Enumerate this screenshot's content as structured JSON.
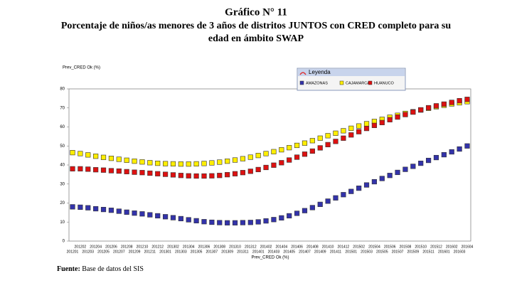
{
  "chart_data": {
    "type": "scatter",
    "title": "Gráfico N° 11",
    "subtitle": [
      "Porcentaje de niños/as menores de 3 años de distritos JUNTOS con CRED completo para su",
      "edad en ámbito SWAP"
    ],
    "y_label": "Prev_CRED Ok (%)",
    "x_label": "Prev_CRED Ok (%)",
    "legend_title": "Leyenda",
    "categories": [
      "201201",
      "201202",
      "201203",
      "201204",
      "201205",
      "201206",
      "201207",
      "201208",
      "201209",
      "201210",
      "201211",
      "201212",
      "201301",
      "201302",
      "201303",
      "201304",
      "201305",
      "201306",
      "201307",
      "201308",
      "201309",
      "201310",
      "201311",
      "201312",
      "201401",
      "201402",
      "201403",
      "201404",
      "201405",
      "201406",
      "201407",
      "201408",
      "201409",
      "201410",
      "201411",
      "201412",
      "201501",
      "201502",
      "201503",
      "201504",
      "201505",
      "201506",
      "201507",
      "201508",
      "201509",
      "201510",
      "201511",
      "201512",
      "201601",
      "201602",
      "201603",
      "201604"
    ],
    "series": [
      {
        "name": "AMAZONAS",
        "color": "#3333aa",
        "values": [
          18,
          17.8,
          17.5,
          17,
          16.6,
          16.2,
          15.7,
          15.2,
          14.7,
          14.3,
          13.8,
          13.3,
          12.8,
          12.3,
          11.8,
          11.2,
          10.7,
          10.2,
          9.9,
          9.7,
          9.6,
          9.6,
          9.7,
          9.8,
          10.1,
          10.6,
          11.3,
          12.2,
          13.3,
          14.6,
          16,
          17.6,
          19.3,
          21,
          22.7,
          24.4,
          26.1,
          27.8,
          29.5,
          31.2,
          32.9,
          34.5,
          36.1,
          37.7,
          39.3,
          40.9,
          42.4,
          43.9,
          45.4,
          46.9,
          48.4,
          50
        ]
      },
      {
        "name": "CAJAMARCA",
        "color": "#ffee00",
        "values": [
          46.5,
          46,
          45.3,
          44.6,
          44,
          43.5,
          43,
          42.5,
          42,
          41.6,
          41.2,
          40.9,
          40.7,
          40.6,
          40.5,
          40.5,
          40.6,
          40.8,
          41.1,
          41.5,
          42,
          42.6,
          43.3,
          44.1,
          45,
          46,
          47,
          48,
          49.1,
          50.3,
          51.5,
          52.8,
          54.1,
          55.4,
          56.7,
          58,
          59.3,
          60.5,
          61.7,
          62.9,
          64,
          65.1,
          66.1,
          67.1,
          68,
          68.9,
          69.8,
          70.6,
          71.4,
          72.1,
          72.7,
          73.3
        ]
      },
      {
        "name": "HUANUCO",
        "color": "#dd1111",
        "values": [
          38,
          38,
          37.8,
          37.5,
          37.3,
          37,
          36.8,
          36.5,
          36.2,
          36,
          35.7,
          35.4,
          35.1,
          34.8,
          34.5,
          34.3,
          34.2,
          34.2,
          34.3,
          34.5,
          34.9,
          35.4,
          36,
          36.7,
          37.6,
          38.7,
          39.9,
          41.2,
          42.6,
          44.1,
          45.7,
          47.3,
          49,
          50.7,
          52.4,
          54.1,
          55.8,
          57.5,
          59.2,
          60.8,
          62.3,
          63.8,
          65.2,
          66.5,
          67.8,
          69,
          70.1,
          71.1,
          72,
          72.9,
          73.8,
          74.5
        ]
      }
    ],
    "ylim": [
      0,
      80
    ],
    "yticks": [
      0,
      10,
      20,
      30,
      40,
      50,
      60,
      70,
      80
    ],
    "grid": false,
    "footer": {
      "label": "Fuente:",
      "text": "Base de datos del SIS"
    }
  }
}
